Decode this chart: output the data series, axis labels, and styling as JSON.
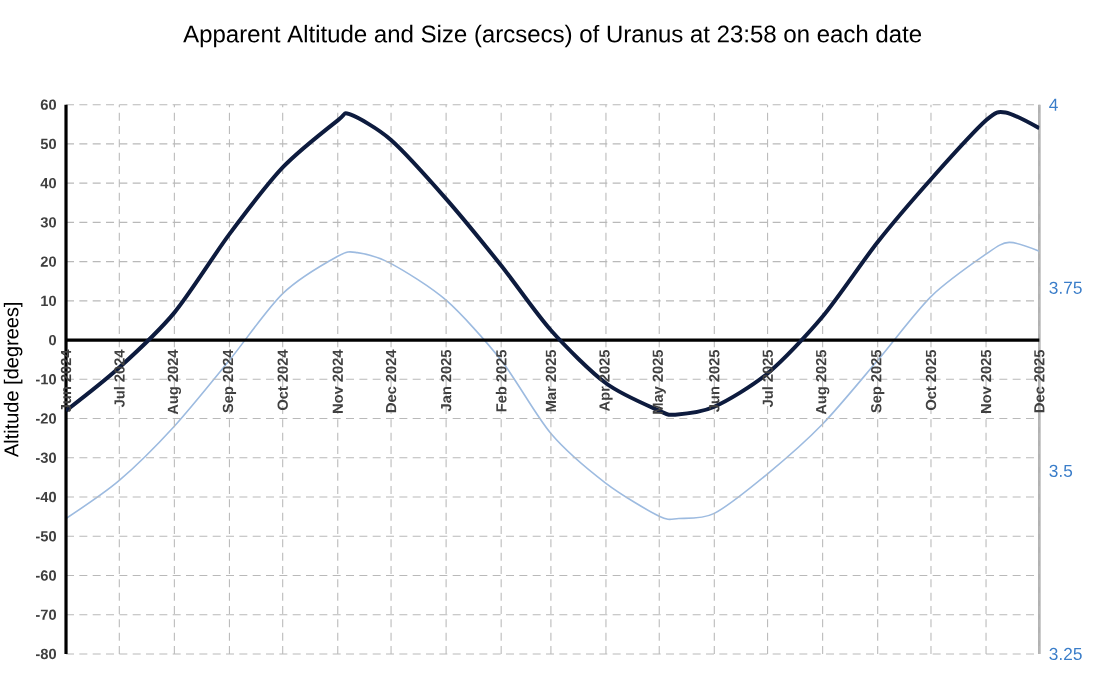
{
  "chart_data": {
    "type": "line",
    "title": "Apparent Altitude and Size (arcsecs) of Uranus at 23:58 on each date",
    "ylabel": "Altitude [degrees]",
    "xlim": [
      "2024-06-01",
      "2025-12-01"
    ],
    "xticks": [
      {
        "value": "2024-06-01",
        "label": "Jun 2024"
      },
      {
        "value": "2024-07-01",
        "label": "Jul 2024"
      },
      {
        "value": "2024-08-01",
        "label": "Aug 2024"
      },
      {
        "value": "2024-09-01",
        "label": "Sep 2024"
      },
      {
        "value": "2024-10-01",
        "label": "Oct 2024"
      },
      {
        "value": "2024-11-01",
        "label": "Nov 2024"
      },
      {
        "value": "2024-12-01",
        "label": "Dec 2024"
      },
      {
        "value": "2025-01-01",
        "label": "Jan 2025"
      },
      {
        "value": "2025-02-01",
        "label": "Feb 2025"
      },
      {
        "value": "2025-03-01",
        "label": "Mar 2025"
      },
      {
        "value": "2025-04-01",
        "label": "Apr 2025"
      },
      {
        "value": "2025-05-01",
        "label": "May 2025"
      },
      {
        "value": "2025-06-01",
        "label": "Jun 2025"
      },
      {
        "value": "2025-07-01",
        "label": "Jul 2025"
      },
      {
        "value": "2025-08-01",
        "label": "Aug 2025"
      },
      {
        "value": "2025-09-01",
        "label": "Sep 2025"
      },
      {
        "value": "2025-10-01",
        "label": "Oct 2025"
      },
      {
        "value": "2025-11-01",
        "label": "Nov 2025"
      },
      {
        "value": "2025-12-01",
        "label": "Dec 2025"
      }
    ],
    "ylim": [
      -80,
      60
    ],
    "yticks": [
      -80,
      -70,
      -60,
      -50,
      -40,
      -30,
      -20,
      -10,
      0,
      10,
      20,
      30,
      40,
      50,
      60
    ],
    "y2lim": [
      3.25,
      4
    ],
    "y2ticks": [
      3.25,
      3.5,
      3.75,
      4
    ],
    "grid": true,
    "series": [
      {
        "color": "#0d1b3e",
        "x": [
          "2024-06-01",
          "2024-07-01",
          "2024-08-01",
          "2024-09-01",
          "2024-10-01",
          "2024-11-01",
          "2024-11-08",
          "2024-12-01",
          "2025-01-01",
          "2025-02-01",
          "2025-03-01",
          "2025-04-01",
          "2025-05-01",
          "2025-05-10",
          "2025-06-01",
          "2025-07-01",
          "2025-08-01",
          "2025-09-01",
          "2025-10-01",
          "2025-11-01",
          "2025-11-12",
          "2025-12-01"
        ],
        "values": [
          -18,
          -7,
          7,
          27,
          44,
          56,
          57.5,
          51,
          36,
          19,
          2.5,
          -11,
          -18,
          -19,
          -17,
          -8.5,
          6,
          25,
          41,
          56,
          58,
          54
        ]
      },
      {
        "color": "#9dbbe0",
        "axis": "y2",
        "x": [
          "2024-06-01",
          "2024-07-01",
          "2024-08-01",
          "2024-09-01",
          "2024-10-01",
          "2024-11-01",
          "2024-11-12",
          "2024-12-01",
          "2025-01-01",
          "2025-02-01",
          "2025-03-01",
          "2025-04-01",
          "2025-05-01",
          "2025-05-12",
          "2025-06-01",
          "2025-07-01",
          "2025-08-01",
          "2025-09-01",
          "2025-10-01",
          "2025-11-01",
          "2025-11-14",
          "2025-12-01"
        ],
        "values": [
          3.435,
          3.487,
          3.561,
          3.651,
          3.742,
          3.793,
          3.798,
          3.783,
          3.733,
          3.651,
          3.551,
          3.483,
          3.438,
          3.435,
          3.442,
          3.496,
          3.564,
          3.651,
          3.738,
          3.796,
          3.812,
          3.8
        ]
      }
    ]
  }
}
